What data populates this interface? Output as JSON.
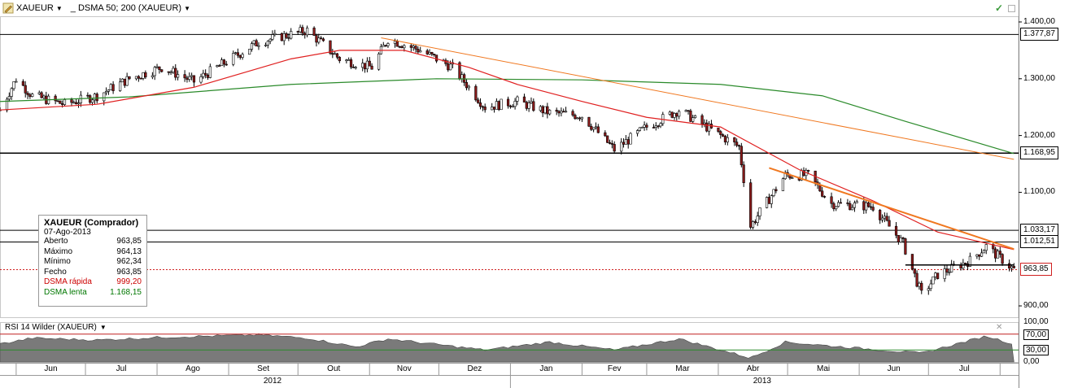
{
  "toolbar": {
    "symbol": "XAUEUR",
    "indicator": "_ DSMA 50; 200 (XAUEUR)"
  },
  "info_box": {
    "title": "XAUEUR (Comprador)",
    "date": "07-Ago-2013",
    "rows": [
      {
        "label": "Aberto",
        "value": "963,85",
        "color": "#000000"
      },
      {
        "label": "Máximo",
        "value": "964,13",
        "color": "#000000"
      },
      {
        "label": "Mínimo",
        "value": "962,34",
        "color": "#000000"
      },
      {
        "label": "Fecho",
        "value": "963,85",
        "color": "#000000"
      },
      {
        "label": "DSMA rápida",
        "value": "999,20",
        "color": "#cc0000"
      },
      {
        "label": "DSMA lenta",
        "value": "1.168,15",
        "color": "#007700"
      }
    ]
  },
  "price_axis": {
    "ticks": [
      "1.400,00",
      "1.300,00",
      "1.200,00",
      "1.100,00",
      "900,00"
    ],
    "tags": [
      {
        "label": "1.377,87",
        "value": 1377.87,
        "style": "line"
      },
      {
        "label": "1.168,95",
        "value": 1168.95,
        "style": "line"
      },
      {
        "label": "1.033,17",
        "value": 1033.17,
        "style": "line"
      },
      {
        "label": "1.012,51",
        "value": 1012.51,
        "style": "line"
      },
      {
        "label": "963,85",
        "value": 963.85,
        "style": "last"
      }
    ]
  },
  "rsi": {
    "label": "RSI 14 Wilder (XAUEUR)",
    "ticks": [
      "100,00",
      "70,00",
      "30,00",
      "0,00"
    ],
    "close_glyph": "✕"
  },
  "time_axis": {
    "months": [
      "Jun",
      "Jul",
      "Ago",
      "Set",
      "Out",
      "Nov",
      "Dez",
      "Jan",
      "Fev",
      "Mar",
      "Abr",
      "Mai",
      "Jun",
      "Jul"
    ],
    "years": [
      "2012",
      "2013"
    ]
  },
  "colors": {
    "candle_up": "#ffffff",
    "candle_down": "#8b1a1a",
    "sma_fast": "#e02020",
    "sma_slow": "#2a8a2a",
    "trendline": "#f07820",
    "rsi_fill": "#7a7a7a"
  },
  "chart_data": {
    "type": "candlestick",
    "title": "",
    "y_unit": "EUR",
    "ylim": [
      880,
      1410
    ],
    "anchors": [
      {
        "x": "2012-05-25",
        "close": 1245
      },
      {
        "x": "2012-06-01",
        "close": 1300
      },
      {
        "x": "2012-06-08",
        "close": 1270
      },
      {
        "x": "2012-06-22",
        "close": 1255
      },
      {
        "x": "2012-07-06",
        "close": 1270
      },
      {
        "x": "2012-07-20",
        "close": 1300
      },
      {
        "x": "2012-08-03",
        "close": 1320
      },
      {
        "x": "2012-08-17",
        "close": 1295
      },
      {
        "x": "2012-08-31",
        "close": 1330
      },
      {
        "x": "2012-09-14",
        "close": 1365
      },
      {
        "x": "2012-10-05",
        "close": 1385
      },
      {
        "x": "2012-10-19",
        "close": 1335
      },
      {
        "x": "2012-11-02",
        "close": 1320
      },
      {
        "x": "2012-11-09",
        "close": 1370
      },
      {
        "x": "2012-11-23",
        "close": 1350
      },
      {
        "x": "2012-12-07",
        "close": 1320
      },
      {
        "x": "2012-12-21",
        "close": 1250
      },
      {
        "x": "2013-01-04",
        "close": 1260
      },
      {
        "x": "2013-01-18",
        "close": 1240
      },
      {
        "x": "2013-02-01",
        "close": 1235
      },
      {
        "x": "2013-02-15",
        "close": 1175
      },
      {
        "x": "2013-03-01",
        "close": 1215
      },
      {
        "x": "2013-03-15",
        "close": 1245
      },
      {
        "x": "2013-03-29",
        "close": 1210
      },
      {
        "x": "2013-04-10",
        "close": 1180
      },
      {
        "x": "2013-04-15",
        "close": 1040
      },
      {
        "x": "2013-04-19",
        "close": 1065
      },
      {
        "x": "2013-04-30",
        "close": 1130
      },
      {
        "x": "2013-05-10",
        "close": 1130
      },
      {
        "x": "2013-05-20",
        "close": 1080
      },
      {
        "x": "2013-06-07",
        "close": 1075
      },
      {
        "x": "2013-06-20",
        "close": 1010
      },
      {
        "x": "2013-06-28",
        "close": 920
      },
      {
        "x": "2013-07-05",
        "close": 955
      },
      {
        "x": "2013-07-19",
        "close": 980
      },
      {
        "x": "2013-07-26",
        "close": 1005
      },
      {
        "x": "2013-08-07",
        "close": 963.85
      }
    ],
    "sma_fast": [
      {
        "x": "2012-05-25",
        "y": 1245
      },
      {
        "x": "2012-07-06",
        "y": 1255
      },
      {
        "x": "2012-08-17",
        "y": 1285
      },
      {
        "x": "2012-09-28",
        "y": 1335
      },
      {
        "x": "2012-10-19",
        "y": 1350
      },
      {
        "x": "2012-11-16",
        "y": 1350
      },
      {
        "x": "2012-12-14",
        "y": 1320
      },
      {
        "x": "2013-01-04",
        "y": 1290
      },
      {
        "x": "2013-02-01",
        "y": 1260
      },
      {
        "x": "2013-03-01",
        "y": 1232
      },
      {
        "x": "2013-04-02",
        "y": 1215
      },
      {
        "x": "2013-05-06",
        "y": 1140
      },
      {
        "x": "2013-06-07",
        "y": 1085
      },
      {
        "x": "2013-07-05",
        "y": 1030
      },
      {
        "x": "2013-08-07",
        "y": 999.2
      }
    ],
    "sma_slow": [
      {
        "x": "2012-05-25",
        "y": 1260
      },
      {
        "x": "2012-07-20",
        "y": 1268
      },
      {
        "x": "2012-09-28",
        "y": 1290
      },
      {
        "x": "2012-11-30",
        "y": 1300
      },
      {
        "x": "2013-02-01",
        "y": 1298
      },
      {
        "x": "2013-04-02",
        "y": 1290
      },
      {
        "x": "2013-05-16",
        "y": 1270
      },
      {
        "x": "2013-06-21",
        "y": 1225
      },
      {
        "x": "2013-08-07",
        "y": 1168.15
      }
    ],
    "trendlines": [
      {
        "x1": "2012-11-06",
        "y1": 1372,
        "x2": "2013-08-07",
        "y2": 1158,
        "width": 1
      },
      {
        "x1": "2013-04-23",
        "y1": 1143,
        "x2": "2013-08-07",
        "y2": 1000,
        "width": 2
      }
    ],
    "hlines": [
      {
        "y": 1377.87,
        "x_start": "2012-05-25"
      },
      {
        "y": 1168.95,
        "x_start": "2012-05-25"
      },
      {
        "y": 1033.17,
        "x_start": "2012-05-25"
      },
      {
        "y": 1012.51,
        "x_start": "2012-05-25"
      },
      {
        "y": 963.85,
        "x_start": "2012-05-25",
        "dotted": true
      }
    ],
    "support_segment": {
      "y": 972,
      "x1": "2013-06-21",
      "x2": "2013-08-07"
    },
    "rsi": {
      "ylim": [
        0,
        100
      ],
      "levels": [
        70,
        30
      ],
      "anchors": [
        {
          "x": "2012-05-25",
          "y": 45
        },
        {
          "x": "2012-06-08",
          "y": 60
        },
        {
          "x": "2012-07-06",
          "y": 55
        },
        {
          "x": "2012-08-03",
          "y": 62
        },
        {
          "x": "2012-09-14",
          "y": 68
        },
        {
          "x": "2012-10-05",
          "y": 60
        },
        {
          "x": "2012-10-26",
          "y": 38
        },
        {
          "x": "2012-11-09",
          "y": 58
        },
        {
          "x": "2012-12-21",
          "y": 30
        },
        {
          "x": "2013-01-18",
          "y": 50
        },
        {
          "x": "2013-02-15",
          "y": 30
        },
        {
          "x": "2013-03-15",
          "y": 58
        },
        {
          "x": "2013-04-15",
          "y": 10
        },
        {
          "x": "2013-04-30",
          "y": 50
        },
        {
          "x": "2013-05-20",
          "y": 40
        },
        {
          "x": "2013-06-28",
          "y": 22
        },
        {
          "x": "2013-07-26",
          "y": 65
        },
        {
          "x": "2013-08-07",
          "y": 45
        }
      ]
    }
  }
}
